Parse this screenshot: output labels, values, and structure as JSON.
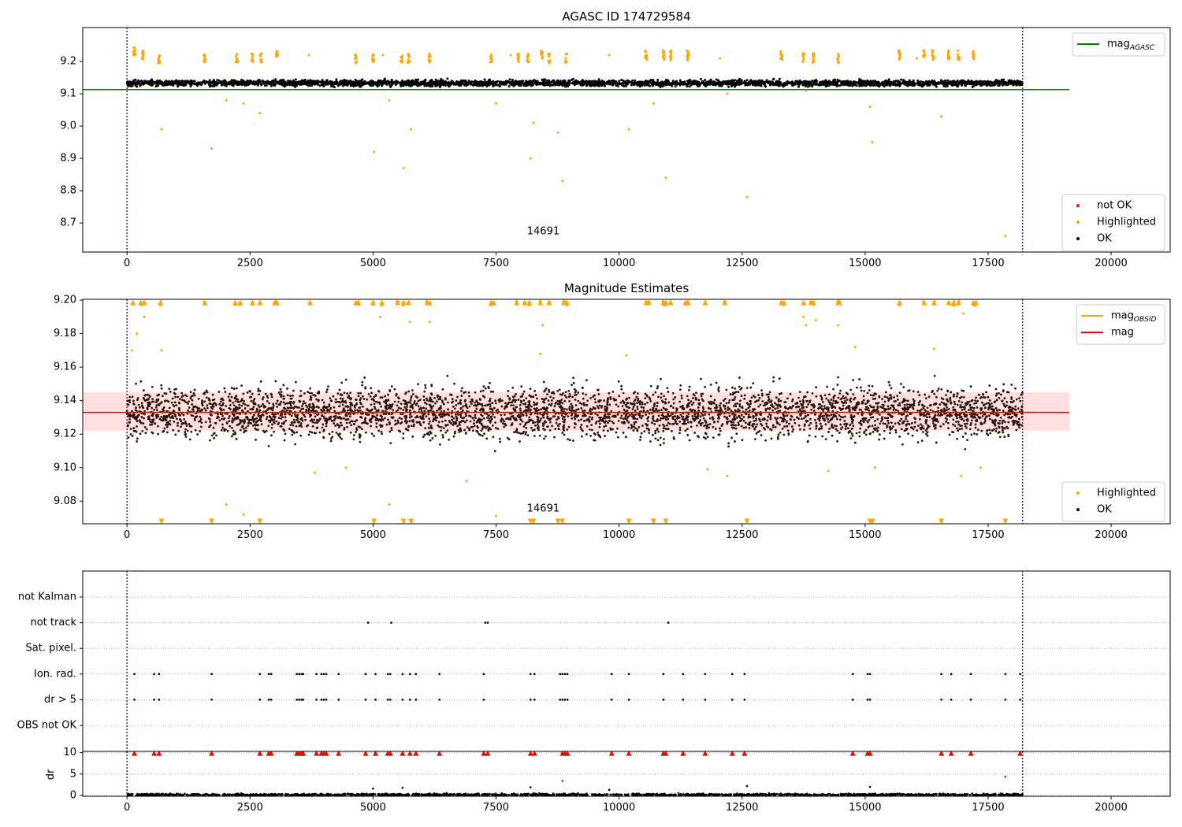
{
  "chart_data": [
    {
      "type": "scatter",
      "title": "AGASC ID 174729584",
      "xlabel": "",
      "ylabel": "",
      "xlim": [
        -900,
        21200
      ],
      "ylim": [
        8.61,
        9.305
      ],
      "xticks": [
        0,
        2500,
        5000,
        7500,
        10000,
        12500,
        15000,
        17500,
        20000
      ],
      "yticks": [
        8.7,
        8.8,
        8.9,
        9.0,
        9.1,
        9.2
      ],
      "obsid_boundaries": [
        0,
        18200
      ],
      "annotation": {
        "text": "14691",
        "x": 9100,
        "y": 8.645
      },
      "mag_agasc": 9.113,
      "legend_lines": [
        {
          "name": "mag",
          "sub": "AGASC",
          "color": "#008000"
        }
      ],
      "legend_points": [
        {
          "name": "not OK",
          "color": "#ff0000"
        },
        {
          "name": "Highlighted",
          "color": "#ffa500"
        },
        {
          "name": "OK",
          "color": "#000000"
        }
      ],
      "ok_band": {
        "x_start": 0,
        "x_end": 18200,
        "center": 9.133,
        "spread": 0.012,
        "count": 3200
      },
      "highlighted_clusters": [
        [
          150,
          9.23
        ],
        [
          320,
          9.22
        ],
        [
          650,
          9.21
        ],
        [
          1580,
          9.21
        ],
        [
          2230,
          9.21
        ],
        [
          2550,
          9.21
        ],
        [
          2720,
          9.21
        ],
        [
          3050,
          9.22
        ],
        [
          4650,
          9.21
        ],
        [
          5000,
          9.21
        ],
        [
          5580,
          9.21
        ],
        [
          5720,
          9.21
        ],
        [
          6150,
          9.21
        ],
        [
          7400,
          9.21
        ],
        [
          7950,
          9.21
        ],
        [
          8150,
          9.21
        ],
        [
          8430,
          9.22
        ],
        [
          8580,
          9.21
        ],
        [
          8930,
          9.21
        ],
        [
          10550,
          9.22
        ],
        [
          10900,
          9.22
        ],
        [
          11050,
          9.22
        ],
        [
          11400,
          9.22
        ],
        [
          13300,
          9.22
        ],
        [
          13750,
          9.21
        ],
        [
          13950,
          9.21
        ],
        [
          14450,
          9.21
        ],
        [
          15700,
          9.22
        ],
        [
          16200,
          9.22
        ],
        [
          16380,
          9.22
        ],
        [
          16700,
          9.22
        ],
        [
          16900,
          9.22
        ],
        [
          17200,
          9.22
        ]
      ],
      "highlighted_outliers": [
        [
          700,
          8.99
        ],
        [
          1720,
          8.93
        ],
        [
          2020,
          9.08
        ],
        [
          2370,
          9.07
        ],
        [
          2700,
          9.04
        ],
        [
          5020,
          8.92
        ],
        [
          5330,
          9.08
        ],
        [
          5620,
          8.87
        ],
        [
          5770,
          8.99
        ],
        [
          7500,
          9.07
        ],
        [
          8200,
          8.9
        ],
        [
          8260,
          9.01
        ],
        [
          8760,
          8.98
        ],
        [
          8850,
          8.83
        ],
        [
          10200,
          8.99
        ],
        [
          10700,
          9.07
        ],
        [
          10950,
          8.84
        ],
        [
          12600,
          8.78
        ],
        [
          15100,
          9.06
        ],
        [
          15150,
          8.95
        ],
        [
          16550,
          9.03
        ],
        [
          17850,
          8.66
        ],
        [
          3700,
          9.22
        ],
        [
          5200,
          9.22
        ],
        [
          7800,
          9.22
        ],
        [
          9800,
          9.22
        ],
        [
          12050,
          9.21
        ],
        [
          16050,
          9.21
        ],
        [
          12200,
          9.1
        ],
        [
          13800,
          9.11
        ]
      ]
    },
    {
      "type": "scatter",
      "title": "Magnitude Estimates",
      "xlabel": "",
      "ylabel": "",
      "xlim": [
        -900,
        21200
      ],
      "ylim": [
        9.0665,
        9.2005
      ],
      "xticks": [
        0,
        2500,
        5000,
        7500,
        10000,
        12500,
        15000,
        17500,
        20000
      ],
      "yticks": [
        9.08,
        9.1,
        9.12,
        9.14,
        9.16,
        9.18,
        9.2
      ],
      "obsid_boundaries": [
        0,
        18200
      ],
      "annotation": {
        "text": "14691",
        "x": 9100,
        "y": 9.071
      },
      "mag": 9.133,
      "mag_band": [
        9.122,
        9.145
      ],
      "mag_obsid": 9.133,
      "legend_lines": [
        {
          "name": "mag",
          "sub": "OBSID",
          "color": "#ffa500"
        },
        {
          "name": "mag",
          "sub": "",
          "color": "#ff0000"
        }
      ],
      "legend_points": [
        {
          "name": "Highlighted",
          "color": "#ffa500"
        },
        {
          "name": "OK",
          "color": "#000000"
        }
      ],
      "ok_band": {
        "x_start": 0,
        "x_end": 18200,
        "center": 9.133,
        "spread": 0.012,
        "count": 3200
      },
      "highlighted_top_x": [
        120,
        280,
        350,
        680,
        1580,
        2200,
        2300,
        2550,
        2700,
        3000,
        3050,
        3720,
        4650,
        4700,
        5000,
        5180,
        5500,
        5620,
        5720,
        6100,
        6150,
        7400,
        7450,
        7920,
        8080,
        8180,
        8400,
        8580,
        8880,
        8940,
        10550,
        10600,
        10900,
        10950,
        11050,
        11350,
        11400,
        11750,
        12150,
        13300,
        13350,
        13750,
        13900,
        13950,
        14450,
        14480,
        15700,
        16200,
        16400,
        16700,
        16800,
        16900,
        17200,
        17250
      ],
      "highlighted_bottom_x": [
        700,
        1720,
        2700,
        5020,
        5620,
        5770,
        8200,
        8260,
        8760,
        8850,
        10200,
        10700,
        10950,
        12600,
        15100,
        15150,
        16550,
        17850
      ],
      "highlighted_mid": [
        [
          100,
          9.17
        ],
        [
          200,
          9.18
        ],
        [
          350,
          9.19
        ],
        [
          700,
          9.17
        ],
        [
          2020,
          9.078
        ],
        [
          2370,
          9.072
        ],
        [
          3820,
          9.097
        ],
        [
          4450,
          9.1
        ],
        [
          5330,
          9.078
        ],
        [
          7500,
          9.071
        ],
        [
          11800,
          9.099
        ],
        [
          12200,
          9.095
        ],
        [
          14250,
          9.098
        ],
        [
          15200,
          9.1
        ],
        [
          16950,
          9.095
        ],
        [
          17350,
          9.1
        ],
        [
          8450,
          9.185
        ],
        [
          5150,
          9.19
        ],
        [
          5750,
          9.187
        ],
        [
          6150,
          9.187
        ],
        [
          13750,
          9.19
        ],
        [
          13800,
          9.185
        ],
        [
          14000,
          9.188
        ],
        [
          14450,
          9.185
        ],
        [
          17000,
          9.192
        ],
        [
          6900,
          9.092
        ],
        [
          8400,
          9.168
        ],
        [
          10150,
          9.167
        ],
        [
          14800,
          9.172
        ],
        [
          16400,
          9.171
        ]
      ]
    },
    {
      "type": "scatter",
      "title": "",
      "xlabel": "",
      "ylabel": "",
      "xlim": [
        -900,
        21200
      ],
      "categories": [
        "not Kalman",
        "not track",
        "Sat. pixel.",
        "Ion. rad.",
        "dr > 5",
        "OBS not OK"
      ],
      "obsid_boundaries": [
        0,
        18200
      ],
      "flag_points": {
        "not track": [
          4900,
          5370,
          7280,
          7330,
          11000
        ],
        "Ion. rad.": [
          150,
          550,
          650,
          1720,
          2700,
          2880,
          2930,
          3450,
          3500,
          3550,
          3580,
          3850,
          3950,
          4000,
          4050,
          4300,
          4850,
          5050,
          5300,
          5350,
          5600,
          5750,
          5870,
          6350,
          7250,
          8200,
          8280,
          8800,
          8850,
          8900,
          8950,
          9850,
          10200,
          10900,
          11300,
          11750,
          12300,
          12550,
          14750,
          15050,
          15100,
          16550,
          16750,
          17150,
          17850,
          18150
        ],
        "dr > 5": [
          150,
          550,
          650,
          1720,
          2700,
          2880,
          2930,
          3450,
          3500,
          3550,
          3580,
          3850,
          3950,
          4000,
          4050,
          4300,
          4850,
          5050,
          5300,
          5350,
          5600,
          5750,
          5870,
          6350,
          7250,
          8200,
          8280,
          8800,
          8850,
          8900,
          8950,
          9850,
          10200,
          10900,
          11300,
          11750,
          12300,
          12550,
          14750,
          15050,
          15100,
          16550,
          16750,
          17150,
          17850,
          18150
        ]
      }
    },
    {
      "type": "scatter",
      "title": "",
      "xlabel": "",
      "ylabel": "dr",
      "xlim": [
        -900,
        21200
      ],
      "ylim": [
        -0.2,
        10.3
      ],
      "xticks": [
        0,
        2500,
        5000,
        7500,
        10000,
        12500,
        15000,
        17500,
        20000
      ],
      "yticks": [
        0,
        5,
        10
      ],
      "obsid_boundaries": [
        0,
        18200
      ],
      "dr_clip_x": [
        150,
        550,
        650,
        1720,
        2700,
        2880,
        2930,
        3450,
        3500,
        3550,
        3580,
        3850,
        3950,
        4000,
        4050,
        4300,
        4850,
        5050,
        5300,
        5350,
        5600,
        5750,
        5870,
        6350,
        7250,
        7330,
        8200,
        8280,
        8850,
        8900,
        8950,
        9850,
        10200,
        10900,
        10950,
        11300,
        11750,
        12300,
        12550,
        14750,
        15050,
        15100,
        16550,
        16750,
        17150,
        18150
      ],
      "dr_red_mid": [
        [
          8850,
          3.4
        ],
        [
          17850,
          4.4
        ]
      ],
      "dr_outliers": [
        [
          5000,
          1.6
        ],
        [
          5600,
          1.8
        ],
        [
          8200,
          1.9
        ],
        [
          12600,
          2.2
        ],
        [
          15100,
          2.0
        ],
        [
          9800,
          1.3
        ]
      ]
    }
  ]
}
